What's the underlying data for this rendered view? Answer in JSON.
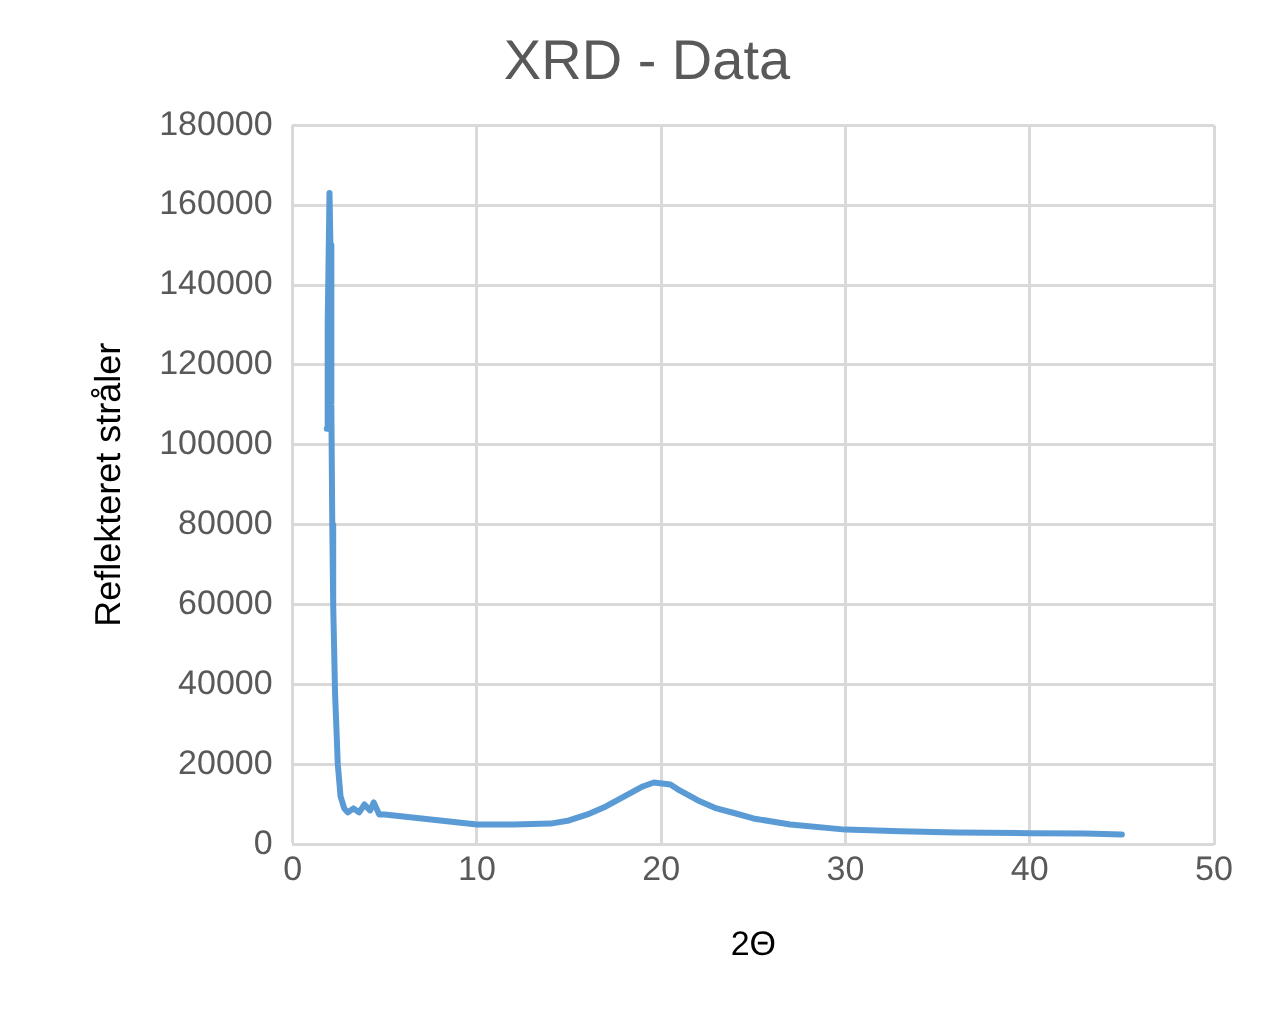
{
  "chart_data": {
    "type": "line",
    "title": "XRD - Data",
    "xlabel": "2Θ",
    "ylabel": "Reflekteret stråler",
    "series": [
      {
        "color": "#5b9bd5",
        "x": [
          1.85,
          1.9,
          2.0,
          2.05,
          2.1,
          2.15,
          2.2,
          2.3,
          2.45,
          2.6,
          2.8,
          3.0,
          3.3,
          3.6,
          3.9,
          4.2,
          4.4,
          4.7,
          5,
          6,
          7,
          8,
          9,
          10,
          12,
          14,
          15,
          16,
          17,
          18,
          19,
          19.6,
          20.5,
          21,
          22,
          23,
          24,
          25,
          27,
          30,
          33,
          36,
          40,
          43,
          45
        ],
        "values": [
          104000,
          130000,
          163000,
          150000,
          110000,
          80000,
          60000,
          38000,
          20000,
          12000,
          9000,
          8000,
          9000,
          8000,
          10000,
          8500,
          10500,
          7500,
          7500,
          7000,
          6500,
          6000,
          5500,
          5000,
          5000,
          5200,
          6000,
          7500,
          9500,
          12000,
          14500,
          15500,
          15000,
          13500,
          11000,
          9000,
          7800,
          6500,
          5000,
          3700,
          3300,
          3000,
          2800,
          2700,
          2500
        ]
      }
    ],
    "xlim": [
      0,
      50
    ],
    "xticks": [
      0,
      10,
      20,
      30,
      40,
      50
    ],
    "ylim": [
      0,
      180000
    ],
    "yticks": [
      0,
      20000,
      40000,
      60000,
      80000,
      100000,
      120000,
      140000,
      160000,
      180000
    ],
    "grid": true,
    "legend": false,
    "marker": "none",
    "line_style": "solid"
  }
}
